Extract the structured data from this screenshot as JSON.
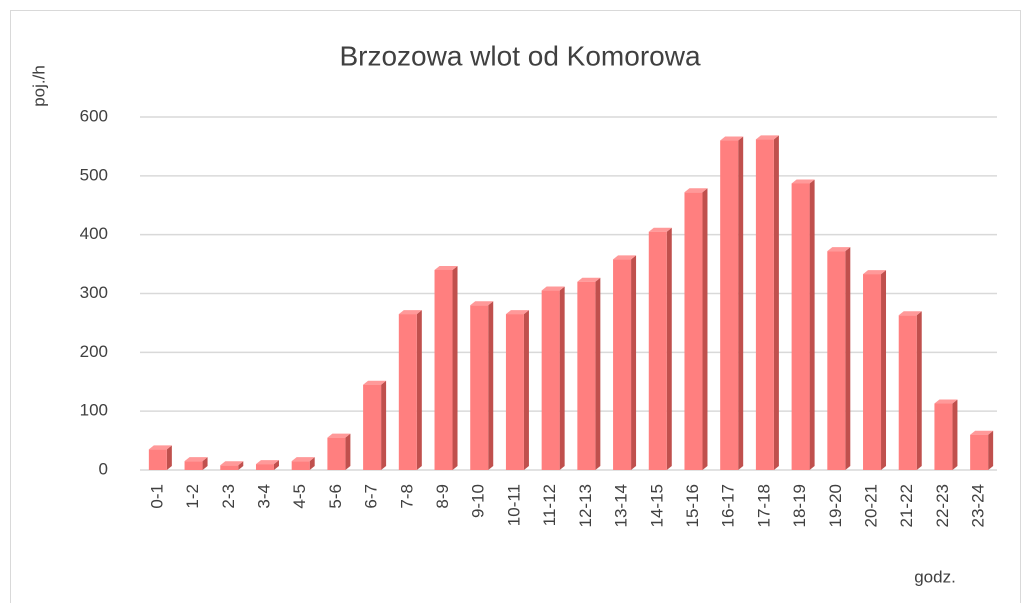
{
  "chart_data": {
    "type": "bar",
    "title": "Brzozowa wlot od Komorowa",
    "y_label": "poj./h",
    "x_label": "godz.",
    "categories": [
      "0-1",
      "1-2",
      "2-3",
      "3-4",
      "4-5",
      "5-6",
      "6-7",
      "7-8",
      "8-9",
      "9-10",
      "10-11",
      "11-12",
      "12-13",
      "13-14",
      "14-15",
      "15-16",
      "16-17",
      "17-18",
      "18-19",
      "19-20",
      "20-21",
      "21-22",
      "22-23",
      "23-24"
    ],
    "values": [
      35,
      15,
      8,
      10,
      15,
      55,
      145,
      265,
      340,
      280,
      265,
      305,
      320,
      358,
      405,
      472,
      560,
      562,
      487,
      372,
      333,
      263,
      113,
      60
    ],
    "color": "#ff7f7f",
    "ylim": [
      0,
      600
    ],
    "yticks": [
      0,
      100,
      200,
      300,
      400,
      500,
      600
    ],
    "grid": true
  }
}
